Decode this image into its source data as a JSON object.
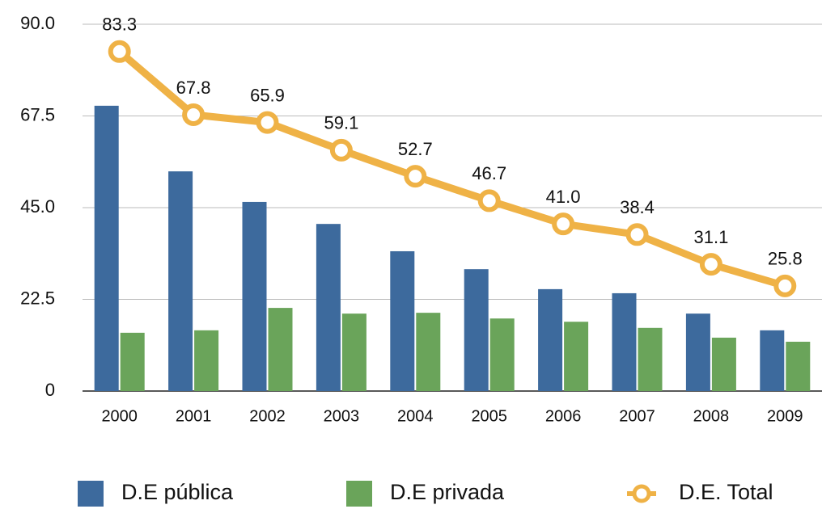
{
  "chart_data": {
    "type": "bar",
    "categories": [
      "2000",
      "2001",
      "2002",
      "2003",
      "2004",
      "2005",
      "2006",
      "2007",
      "2008",
      "2009"
    ],
    "series": [
      {
        "name": "D.E pública",
        "type": "bar",
        "color": "#3d6a9d",
        "values": [
          70.0,
          53.9,
          46.4,
          41.0,
          34.3,
          29.9,
          25.0,
          24.0,
          19.0,
          14.9
        ]
      },
      {
        "name": "D.E privada",
        "type": "bar",
        "color": "#6aa45a",
        "values": [
          14.3,
          14.9,
          20.4,
          19.0,
          19.2,
          17.8,
          17.0,
          15.5,
          13.1,
          12.1
        ]
      },
      {
        "name": "D.E. Total",
        "type": "line",
        "color": "#efb246",
        "values": [
          83.3,
          67.8,
          65.9,
          59.1,
          52.7,
          46.7,
          41.0,
          38.4,
          31.1,
          25.8
        ],
        "value_labels": [
          "83.3",
          "67.8",
          "65.9",
          "59.1",
          "52.7",
          "46.7",
          "41.0",
          "38.4",
          "31.1",
          "25.8"
        ]
      }
    ],
    "ylim": [
      0,
      90
    ],
    "yticks": [
      0,
      22.5,
      {
        "value": 45,
        "label": "45.0"
      },
      67.5,
      {
        "value": 90,
        "label": "90.0"
      }
    ],
    "grid": true,
    "legend": "bottom"
  }
}
